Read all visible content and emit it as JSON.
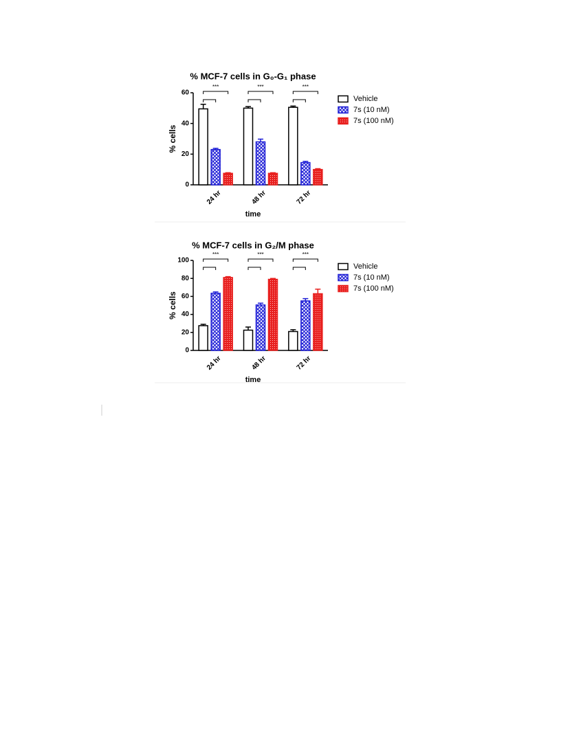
{
  "chart_data": [
    {
      "type": "bar",
      "title": "% MCF-7 cells in G₀-G₁ phase",
      "x_label": "time",
      "y_label": "% cells",
      "categories": [
        "24 hr",
        "48 hr",
        "72 hr"
      ],
      "series": [
        {
          "name": "Vehicle",
          "color": "#ffffff",
          "pattern": "solid",
          "values": [
            49.5,
            50,
            50.5
          ],
          "errors": [
            3,
            1,
            0.8
          ]
        },
        {
          "name": "7s (10 nM)",
          "color": "#1f1fd6",
          "pattern": "crosshatch",
          "values": [
            23,
            28,
            14.5
          ],
          "errors": [
            0.8,
            1.8,
            0.8
          ]
        },
        {
          "name": "7s (100 nM)",
          "color": "#e8201f",
          "pattern": "dots",
          "values": [
            7.5,
            7.5,
            10
          ],
          "errors": [
            0.4,
            0.4,
            0.5
          ]
        }
      ],
      "annotations": [
        "***",
        "***",
        "***"
      ],
      "ylim": [
        0,
        60
      ],
      "yticks": [
        0,
        20,
        40,
        60
      ],
      "legend": "right"
    },
    {
      "type": "bar",
      "title": "% MCF-7 cells in G₂/M phase",
      "x_label": "time",
      "y_label": "% cells",
      "categories": [
        "24 hr",
        "48 hr",
        "72 hr"
      ],
      "series": [
        {
          "name": "Vehicle",
          "color": "#ffffff",
          "pattern": "solid",
          "values": [
            27.5,
            22.5,
            21
          ],
          "errors": [
            1.5,
            3.5,
            2
          ]
        },
        {
          "name": "7s (10 nM)",
          "color": "#1f1fd6",
          "pattern": "crosshatch",
          "values": [
            63.5,
            50.5,
            55
          ],
          "errors": [
            1.5,
            2,
            2.5
          ]
        },
        {
          "name": "7s (100 nM)",
          "color": "#e8201f",
          "pattern": "dots",
          "values": [
            81,
            79,
            63
          ],
          "errors": [
            1,
            1,
            5
          ]
        }
      ],
      "annotations": [
        "***",
        "***",
        "***"
      ],
      "ylim": [
        0,
        100
      ],
      "yticks": [
        0,
        20,
        40,
        60,
        80,
        100
      ],
      "legend": "right"
    }
  ]
}
